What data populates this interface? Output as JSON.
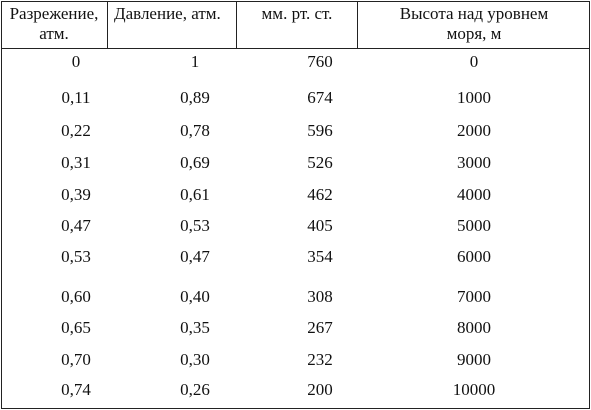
{
  "table": {
    "header": [
      "Разрежение, атм.",
      "Давление, атм.",
      "мм. рт. ст.",
      "Высота над уровнем моря,  м"
    ],
    "rows": [
      [
        "0",
        "1",
        "760",
        "0"
      ],
      [
        "0,11",
        "0,89",
        "674",
        "1000"
      ],
      [
        "0,22",
        "0,78",
        "596",
        "2000"
      ],
      [
        "0,31",
        "0,69",
        "526",
        "3000"
      ],
      [
        "0,39",
        "0,61",
        "462",
        "4000"
      ],
      [
        "0,47",
        "0,53",
        "405",
        "5000"
      ],
      [
        "0,53",
        "0,47",
        "354",
        "6000"
      ],
      [
        "0,60",
        "0,40",
        "308",
        "7000"
      ],
      [
        "0,65",
        "0,35",
        "267",
        "8000"
      ],
      [
        "0,70",
        "0,30",
        "232",
        "9000"
      ],
      [
        "0,74",
        "0,26",
        "200",
        "10000"
      ]
    ]
  }
}
